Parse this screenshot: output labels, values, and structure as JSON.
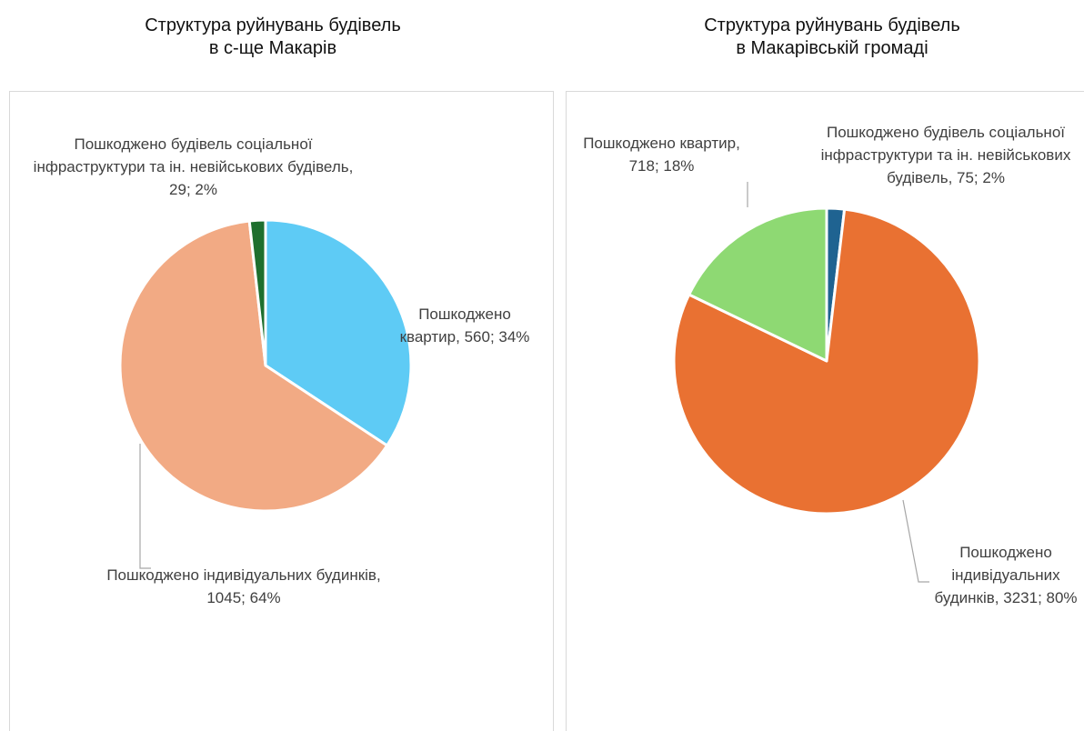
{
  "chart_data": [
    {
      "type": "pie",
      "title": [
        "Структура руйнувань будівель",
        "в с-ще Макарів"
      ],
      "values": [
        560,
        1045,
        29
      ],
      "value_labels": [
        "Пошкоджено квартир, 560; 34%",
        "Пошкоджено індивідуальних будинків, 1045; 64%",
        "Пошкоджено будівель соціальної інфраструктури та ін. невійськових будівель, 29; 2%"
      ],
      "colors": [
        "#5ecbf5",
        "#f2aa84",
        "#1e6f2e"
      ]
    },
    {
      "type": "pie",
      "title": [
        "Структура руйнувань будівель",
        "в Макарівській громаді"
      ],
      "values": [
        75,
        3231,
        718
      ],
      "value_labels": [
        "Пошкоджено будівель соціальної інфраструктури та ін. невійськових будівель, 75; 2%",
        "Пошкоджено індивідуальних будинків, 3231; 80%",
        "Пошкоджено квартир, 718; 18%"
      ],
      "colors": [
        "#1f6391",
        "#e97132",
        "#8ed973"
      ]
    }
  ]
}
